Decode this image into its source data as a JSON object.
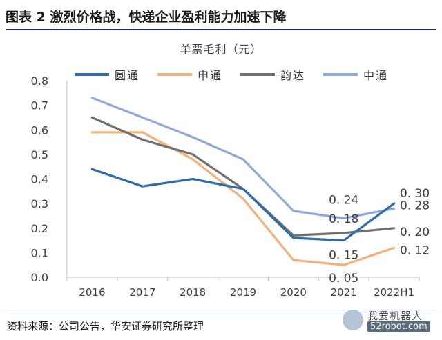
{
  "header": {
    "title": "图表 2 激烈价格战，快递企业盈利能力加速下降"
  },
  "source": "资料来源：公司公告，华安证券研究所整理",
  "watermark": {
    "text1": "我爱机器人",
    "text2": "52robot.com"
  },
  "chart_data": {
    "type": "line",
    "title": "单票毛利（元）",
    "categories": [
      "2016",
      "2017",
      "2018",
      "2019",
      "2020",
      "2021",
      "2022H1"
    ],
    "ylim": [
      0.0,
      0.8
    ],
    "yticks": [
      "0.0",
      "0.1",
      "0.2",
      "0.3",
      "0.4",
      "0.5",
      "0.6",
      "0.7",
      "0.8"
    ],
    "grid": false,
    "legend_position": "top",
    "series": [
      {
        "name": "圆通",
        "color": "#2e6ca8",
        "values": [
          0.44,
          0.37,
          0.4,
          0.36,
          0.16,
          0.15,
          0.3
        ]
      },
      {
        "name": "申通",
        "color": "#f2b07f",
        "values": [
          0.59,
          0.59,
          0.48,
          0.32,
          0.07,
          0.05,
          0.12
        ]
      },
      {
        "name": "韵达",
        "color": "#707070",
        "values": [
          0.65,
          0.56,
          0.5,
          0.36,
          0.17,
          0.18,
          0.2
        ]
      },
      {
        "name": "中通",
        "color": "#8eaadb",
        "values": [
          0.73,
          0.65,
          0.57,
          0.48,
          0.27,
          0.24,
          0.28
        ]
      }
    ],
    "data_labels": [
      {
        "series": 3,
        "index": 5,
        "text": "0. 24"
      },
      {
        "series": 2,
        "index": 5,
        "text": "0. 18"
      },
      {
        "series": 0,
        "index": 5,
        "text": "0. 15"
      },
      {
        "series": 1,
        "index": 5,
        "text": "0. 05"
      },
      {
        "series": 0,
        "index": 6,
        "text": "0. 30"
      },
      {
        "series": 3,
        "index": 6,
        "text": "0. 28"
      },
      {
        "series": 2,
        "index": 6,
        "text": "0. 20"
      },
      {
        "series": 1,
        "index": 6,
        "text": "0. 12"
      }
    ]
  }
}
